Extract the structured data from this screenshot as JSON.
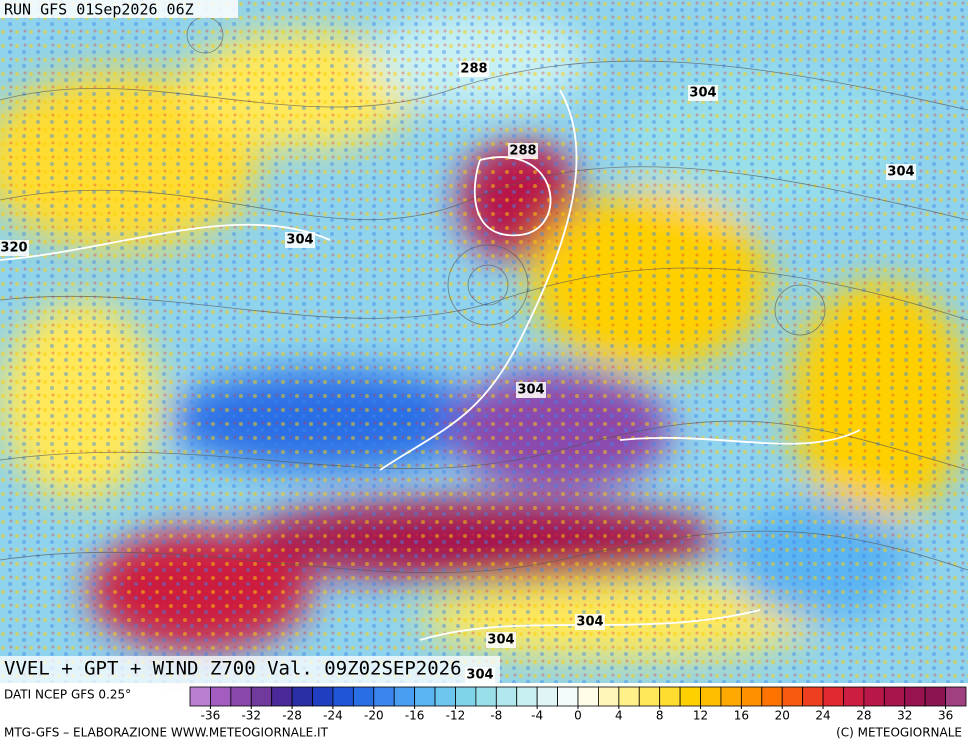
{
  "header": {
    "run": "RUN GFS 01Sep2026 06Z"
  },
  "map": {
    "title": "VVEL + GPT + WIND Z700 Val. 09Z02SEP2026",
    "contour_labels": [
      288,
      304,
      288,
      304,
      304,
      320,
      304,
      304,
      304,
      304
    ]
  },
  "colorbar": {
    "source": "DATI NCEP GFS 0.25°",
    "range": [
      -38,
      38
    ],
    "ticks": [
      -36,
      -32,
      -28,
      -24,
      -20,
      -16,
      -12,
      -8,
      -4,
      0,
      4,
      8,
      12,
      16,
      20,
      24,
      28,
      32,
      36
    ],
    "colors": [
      "#b97fd0",
      "#a35cc0",
      "#8a48ad",
      "#6f3a9c",
      "#4a2a98",
      "#2b2fa6",
      "#1f3fc0",
      "#1f55d6",
      "#2a6ee6",
      "#3a86ee",
      "#4a9ef2",
      "#5ab4f2",
      "#6cc6ee",
      "#80d4ea",
      "#98dfea",
      "#b0e8ee",
      "#c8f0f2",
      "#e0f6f6",
      "#f4fbfb",
      "#fffde8",
      "#fff6b8",
      "#fff08a",
      "#ffe85a",
      "#ffdc30",
      "#ffd000",
      "#ffbf00",
      "#ffa800",
      "#ff9000",
      "#ff7400",
      "#f85a10",
      "#ee4020",
      "#e02a30",
      "#cc1e40",
      "#b81848",
      "#a8144c",
      "#981450",
      "#8c1450",
      "#a04080"
    ]
  },
  "footer": {
    "left": "MTG-GFS – ELABORAZIONE WWW.METEOGIORNALE.IT",
    "right": "(C) METEOGIORNALE"
  }
}
